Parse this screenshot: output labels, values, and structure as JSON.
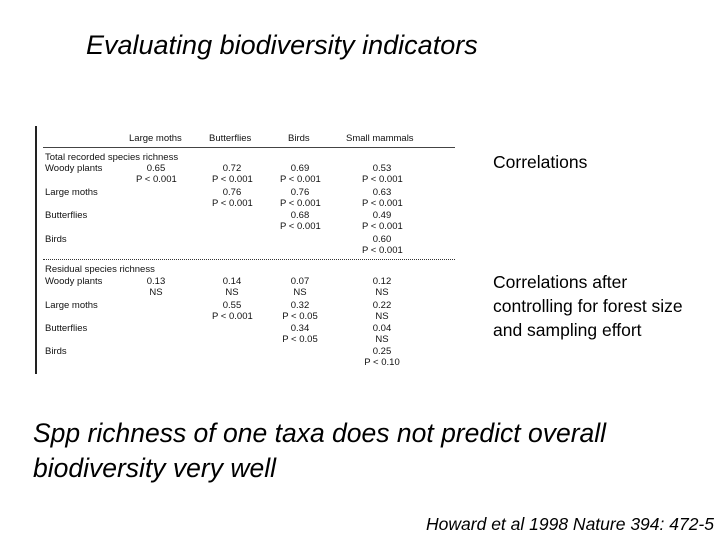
{
  "slide": {
    "title": "Evaluating biodiversity indicators",
    "note_correlations": "Correlations",
    "note_after": "Correlations after controlling for forest size and sampling effort",
    "conclusion": "Spp richness of one taxa does not predict overall biodiversity very well",
    "citation": "Howard et al 1998 Nature 394: 472-5"
  },
  "table": {
    "columns": [
      "Large moths",
      "Butterflies",
      "Birds",
      "Small mammals"
    ],
    "sections": [
      {
        "title": "Total recorded species richness",
        "rows": [
          {
            "label": "Woody plants",
            "cells": [
              [
                "0.65",
                "P < 0.001"
              ],
              [
                "0.72",
                "P < 0.001"
              ],
              [
                "0.69",
                "P < 0.001"
              ],
              [
                "0.53",
                "P < 0.001"
              ]
            ]
          },
          {
            "label": "Large moths",
            "cells": [
              [
                "",
                ""
              ],
              [
                "0.76",
                "P < 0.001"
              ],
              [
                "0.76",
                "P < 0.001"
              ],
              [
                "0.63",
                "P < 0.001"
              ]
            ]
          },
          {
            "label": "Butterflies",
            "cells": [
              [
                "",
                ""
              ],
              [
                "",
                ""
              ],
              [
                "0.68",
                "P < 0.001"
              ],
              [
                "0.49",
                "P < 0.001"
              ]
            ]
          },
          {
            "label": "Birds",
            "cells": [
              [
                "",
                ""
              ],
              [
                "",
                ""
              ],
              [
                "",
                ""
              ],
              [
                "0.60",
                "P < 0.001"
              ]
            ]
          }
        ]
      },
      {
        "title": "Residual species richness",
        "rows": [
          {
            "label": "Woody plants",
            "cells": [
              [
                "0.13",
                "NS"
              ],
              [
                "0.14",
                "NS"
              ],
              [
                "0.07",
                "NS"
              ],
              [
                "0.12",
                "NS"
              ]
            ]
          },
          {
            "label": "Large moths",
            "cells": [
              [
                "",
                ""
              ],
              [
                "0.55",
                "P < 0.001"
              ],
              [
                "0.32",
                "P < 0.05"
              ],
              [
                "0.22",
                "NS"
              ]
            ]
          },
          {
            "label": "Butterflies",
            "cells": [
              [
                "",
                ""
              ],
              [
                "",
                ""
              ],
              [
                "0.34",
                "P < 0.05"
              ],
              [
                "0.04",
                "NS"
              ]
            ]
          },
          {
            "label": "Birds",
            "cells": [
              [
                "",
                ""
              ],
              [
                "",
                ""
              ],
              [
                "",
                ""
              ],
              [
                "0.25",
                "P < 0.10"
              ]
            ]
          }
        ]
      }
    ]
  }
}
